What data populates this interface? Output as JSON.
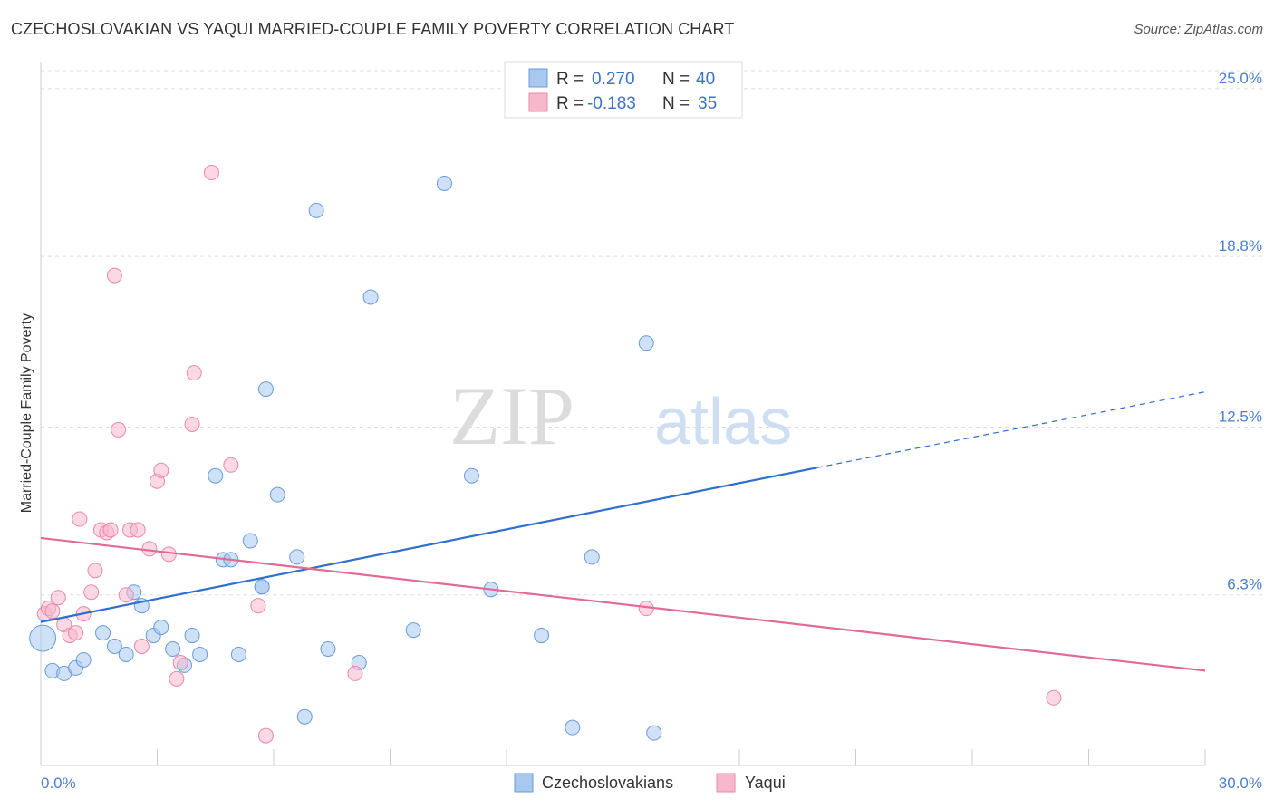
{
  "header": {
    "title": "CZECHOSLOVAKIAN VS YAQUI MARRIED-COUPLE FAMILY POVERTY CORRELATION CHART",
    "source": "Source: ZipAtlas.com"
  },
  "watermark": {
    "zip": "ZIP",
    "atlas": "atlas"
  },
  "legend_top": {
    "rows": [
      {
        "r_label": "R =",
        "r_value": "0.270",
        "n_label": "N =",
        "n_value": "40"
      },
      {
        "r_label": "R =",
        "r_value": "-0.183",
        "n_label": "N =",
        "n_value": "35"
      }
    ]
  },
  "chart_data": {
    "type": "scatter",
    "title": "CZECHOSLOVAKIAN VS YAQUI MARRIED-COUPLE FAMILY POVERTY CORRELATION CHART",
    "xlabel": "",
    "ylabel": "Married-Couple Family Poverty",
    "xlim": [
      0,
      30
    ],
    "ylim": [
      0,
      26
    ],
    "x_tick_labels": [
      "0.0%",
      "30.0%"
    ],
    "y_ticks": [
      6.3,
      12.5,
      18.8,
      25.0
    ],
    "y_tick_labels": [
      "6.3%",
      "12.5%",
      "18.8%",
      "25.0%"
    ],
    "series": [
      {
        "name": "Czechoslovakians",
        "color": "#a8c8f0",
        "stroke": "#6a9bd8",
        "line_color": "#2f6fce",
        "R": 0.27,
        "N": 40,
        "trend": {
          "x0": 0,
          "y0": 5.3,
          "x1": 20,
          "y1": 11.0,
          "dash_to_x": 30,
          "dash_to_y": 13.8
        },
        "points": [
          [
            0.05,
            4.7,
            1.8
          ],
          [
            0.3,
            3.5,
            1
          ],
          [
            0.6,
            3.4,
            1
          ],
          [
            0.9,
            3.6,
            1
          ],
          [
            1.1,
            3.9,
            1
          ],
          [
            1.6,
            4.9,
            1
          ],
          [
            1.9,
            4.4,
            1
          ],
          [
            2.2,
            4.1,
            1
          ],
          [
            2.4,
            6.4,
            1
          ],
          [
            2.6,
            5.9,
            1
          ],
          [
            2.9,
            4.8,
            1
          ],
          [
            3.1,
            5.1,
            1
          ],
          [
            3.4,
            4.3,
            1
          ],
          [
            3.7,
            3.7,
            1
          ],
          [
            3.9,
            4.8,
            1
          ],
          [
            4.1,
            4.1,
            1
          ],
          [
            4.5,
            10.7,
            1
          ],
          [
            4.7,
            7.6,
            1
          ],
          [
            4.9,
            7.6,
            1
          ],
          [
            5.1,
            4.1,
            1
          ],
          [
            5.4,
            8.3,
            1
          ],
          [
            5.7,
            6.6,
            1
          ],
          [
            5.8,
            13.9,
            1
          ],
          [
            6.1,
            10.0,
            1
          ],
          [
            6.6,
            7.7,
            1
          ],
          [
            6.8,
            1.8,
            1
          ],
          [
            7.1,
            20.5,
            1
          ],
          [
            7.4,
            4.3,
            1
          ],
          [
            8.2,
            3.8,
            1
          ],
          [
            8.5,
            17.3,
            1
          ],
          [
            9.6,
            5.0,
            1
          ],
          [
            10.4,
            21.5,
            1
          ],
          [
            11.1,
            10.7,
            1
          ],
          [
            11.6,
            6.5,
            1
          ],
          [
            12.9,
            4.8,
            1
          ],
          [
            13.7,
            1.4,
            1
          ],
          [
            14.2,
            7.7,
            1
          ],
          [
            15.8,
            1.2,
            1
          ],
          [
            15.6,
            15.6,
            1
          ],
          [
            5.7,
            6.6,
            1
          ]
        ]
      },
      {
        "name": "Yaqui",
        "color": "#f7b8cc",
        "stroke": "#e68aa8",
        "line_color": "#e06b97",
        "R": -0.183,
        "N": 35,
        "trend": {
          "x0": 0,
          "y0": 8.4,
          "x1": 30,
          "y1": 3.5
        },
        "points": [
          [
            0.1,
            5.6,
            1
          ],
          [
            0.2,
            5.8,
            1
          ],
          [
            0.3,
            5.7,
            1
          ],
          [
            0.45,
            6.2,
            1
          ],
          [
            0.6,
            5.2,
            1
          ],
          [
            0.75,
            4.8,
            1
          ],
          [
            0.9,
            4.9,
            1
          ],
          [
            1.0,
            9.1,
            1
          ],
          [
            1.1,
            5.6,
            1
          ],
          [
            1.3,
            6.4,
            1
          ],
          [
            1.4,
            7.2,
            1
          ],
          [
            1.55,
            8.7,
            1
          ],
          [
            1.7,
            8.6,
            1
          ],
          [
            1.8,
            8.7,
            1
          ],
          [
            1.9,
            18.1,
            1
          ],
          [
            2.0,
            12.4,
            1
          ],
          [
            2.2,
            6.3,
            1
          ],
          [
            2.3,
            8.7,
            1
          ],
          [
            2.5,
            8.7,
            1
          ],
          [
            2.6,
            4.4,
            1
          ],
          [
            2.8,
            8.0,
            1
          ],
          [
            3.0,
            10.5,
            1
          ],
          [
            3.1,
            10.9,
            1
          ],
          [
            3.3,
            7.8,
            1
          ],
          [
            3.5,
            3.2,
            1
          ],
          [
            3.6,
            3.8,
            1
          ],
          [
            3.9,
            12.6,
            1
          ],
          [
            3.95,
            14.5,
            1
          ],
          [
            4.4,
            21.9,
            1
          ],
          [
            4.9,
            11.1,
            1
          ],
          [
            5.6,
            5.9,
            1
          ],
          [
            5.8,
            1.1,
            1
          ],
          [
            8.1,
            3.4,
            1
          ],
          [
            15.6,
            5.8,
            1
          ],
          [
            26.1,
            2.5,
            1
          ]
        ]
      }
    ]
  },
  "legend_bottom": {
    "items": [
      {
        "label": "Czechoslovakians"
      },
      {
        "label": "Yaqui"
      }
    ]
  }
}
